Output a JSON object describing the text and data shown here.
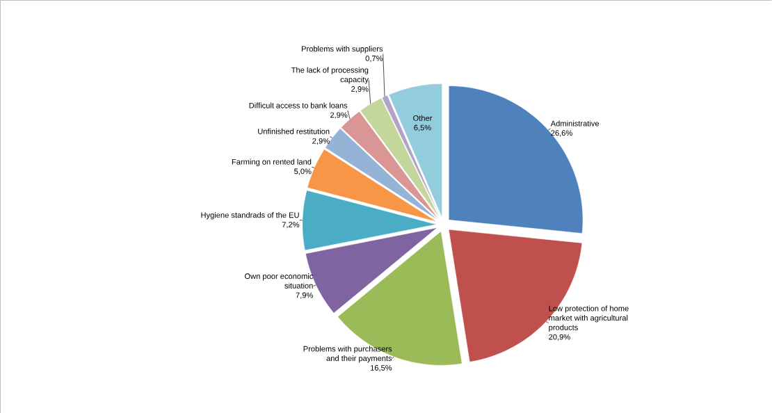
{
  "chart_data": {
    "type": "pie",
    "categories": [
      "Administrative",
      "Low protection of home market with agricultural products",
      "Problems with purchasers and their payments",
      "Own poor economic situation",
      "Hygiene standrads of the EU",
      "Farming on rented land",
      "Unfinished restitution",
      "Difficult access to bank loans",
      "The lack of processing capacity",
      "Problems with suppliers",
      "Other"
    ],
    "values": [
      26.6,
      20.9,
      16.5,
      7.9,
      7.2,
      5.0,
      2.9,
      2.9,
      2.9,
      0.7,
      6.5
    ],
    "value_labels": [
      "26,6%",
      "20,9%",
      "16,5%",
      "7,9%",
      "7,2%",
      "5,0%",
      "2,9%",
      "2,9%",
      "2,9%",
      "0,7%",
      "6,5%"
    ],
    "colors": [
      "#4f81bd",
      "#c0504d",
      "#9bbb59",
      "#8064a2",
      "#4bacc6",
      "#f79646",
      "#95b3d7",
      "#d99694",
      "#c3d69b",
      "#b3a2c7",
      "#93cddd"
    ]
  }
}
